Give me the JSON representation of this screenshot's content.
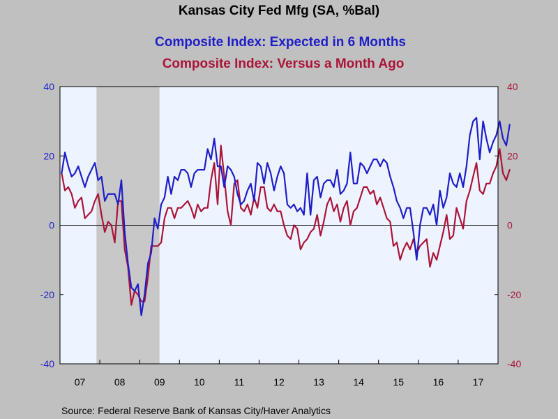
{
  "chart_data": {
    "type": "line",
    "title": "Kansas City Fed Mfg (SA, %Bal)",
    "x_tick_labels": [
      "07",
      "08",
      "09",
      "10",
      "11",
      "12",
      "13",
      "14",
      "15",
      "16",
      "17"
    ],
    "x_start": "2007-01",
    "ylim": [
      -40,
      40
    ],
    "y_ticks": [
      -40,
      -20,
      0,
      20,
      40
    ],
    "y_ticks_right": [
      -40,
      -20,
      0,
      20,
      40
    ],
    "recession": {
      "start": "2007-12",
      "end": "2009-06"
    },
    "source": "Source:  Federal Reserve Bank of Kansas City/Haver Analytics",
    "series": [
      {
        "name": "Composite Index: Expected in 6 Months",
        "color": "#1e1ec8",
        "values": [
          15,
          21,
          17,
          14,
          15,
          17,
          14,
          11,
          14,
          16,
          18,
          13,
          14,
          7,
          9,
          9,
          9,
          6,
          13,
          -2,
          -11,
          -18,
          -19,
          -17,
          -26,
          -20,
          -11,
          -8,
          2,
          -1,
          6,
          8,
          14,
          9,
          14,
          13,
          16,
          16,
          15,
          11,
          15,
          16,
          16,
          16,
          22,
          19,
          25,
          17,
          17,
          11,
          17,
          16,
          14,
          9,
          6,
          7,
          10,
          12,
          7,
          18,
          17,
          12,
          18,
          15,
          10,
          14,
          17,
          15,
          6,
          5,
          6,
          4,
          5,
          3,
          15,
          3,
          13,
          14,
          8,
          12,
          13,
          13,
          11,
          16,
          9,
          10,
          12,
          21,
          12,
          12,
          18,
          17,
          15,
          17,
          19,
          19,
          17,
          19,
          18,
          14,
          11,
          7,
          5,
          2,
          5,
          5,
          -2,
          -10,
          0,
          5,
          5,
          3,
          6,
          0,
          10,
          5,
          8,
          15,
          12,
          11,
          15,
          11,
          17,
          26,
          30,
          31,
          19,
          30,
          25,
          21,
          24,
          26,
          30,
          25,
          23,
          29
        ]
      },
      {
        "name": "Composite Index: Versus a Month Ago",
        "color": "#aa1438",
        "values": [
          15,
          10,
          11,
          9,
          5,
          7,
          8,
          2,
          3,
          4,
          7,
          9,
          3,
          -2,
          1,
          0,
          -5,
          7,
          7,
          -7,
          -12,
          -23,
          -19,
          -20,
          -22,
          -22,
          -15,
          -6,
          -6,
          -6,
          -5,
          2,
          5,
          5,
          2,
          5,
          5,
          6,
          7,
          5,
          2,
          6,
          4,
          5,
          5,
          13,
          18,
          6,
          23,
          14,
          4,
          0,
          12,
          13,
          5,
          4,
          6,
          3,
          8,
          5,
          11,
          11,
          5,
          4,
          6,
          4,
          4,
          0,
          -3,
          -4,
          0,
          -1,
          -7,
          -5,
          -4,
          -2,
          -1,
          3,
          -3,
          1,
          6,
          8,
          4,
          6,
          1,
          5,
          7,
          0,
          4,
          5,
          8,
          11,
          11,
          9,
          10,
          6,
          8,
          5,
          2,
          1,
          -6,
          -5,
          -10,
          -7,
          -5,
          -7,
          -4,
          -8,
          -6,
          -5,
          -4,
          -12,
          -8,
          -10,
          -6,
          -2,
          3,
          -4,
          -3,
          5,
          2,
          -1,
          7,
          10,
          14,
          18,
          10,
          9,
          12,
          12,
          15,
          17,
          22,
          15,
          13,
          16
        ]
      }
    ]
  }
}
